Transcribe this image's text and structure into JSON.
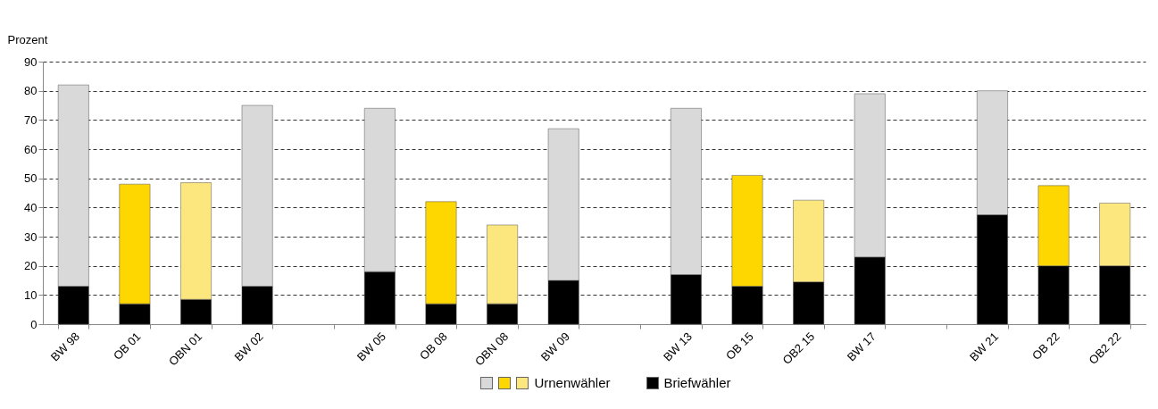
{
  "chart_data": {
    "type": "bar",
    "stacked": true,
    "ylabel": "Prozent",
    "categories": [
      "BW 98",
      "OB 01",
      "OBN  01",
      "BW 02",
      null,
      "BW 05",
      "OB 08",
      "OBN  08",
      "BW 09",
      null,
      "BW 13",
      "OB 15",
      "OB2  15",
      "BW 17",
      null,
      "BW 21",
      "OB 22",
      "OB2  22"
    ],
    "series": [
      {
        "name": "Briefwähler",
        "color": "#000000",
        "values": [
          13,
          7,
          8.5,
          13,
          null,
          18,
          7,
          7,
          15,
          null,
          17,
          13,
          14.5,
          23,
          null,
          37.5,
          20,
          20
        ]
      },
      {
        "name": "Urnenwähler",
        "color": "#d9d9d9",
        "colors": [
          "#d9d9d9",
          "#ffd700",
          "#fce77f",
          "#d9d9d9",
          null,
          "#d9d9d9",
          "#ffd700",
          "#fce77f",
          "#d9d9d9",
          null,
          "#d9d9d9",
          "#ffd700",
          "#fce77f",
          "#d9d9d9",
          null,
          "#d9d9d9",
          "#ffd700",
          "#fce77f"
        ],
        "values": [
          69,
          41,
          40,
          62,
          null,
          56,
          35,
          27,
          52,
          null,
          57,
          38,
          28,
          56,
          null,
          42.5,
          27.5,
          21.5
        ]
      }
    ],
    "ylim": [
      0,
      90
    ],
    "yticks": [
      0,
      10,
      20,
      30,
      40,
      50,
      60,
      70,
      80,
      90
    ],
    "grid": "y",
    "legend": "bottom"
  }
}
